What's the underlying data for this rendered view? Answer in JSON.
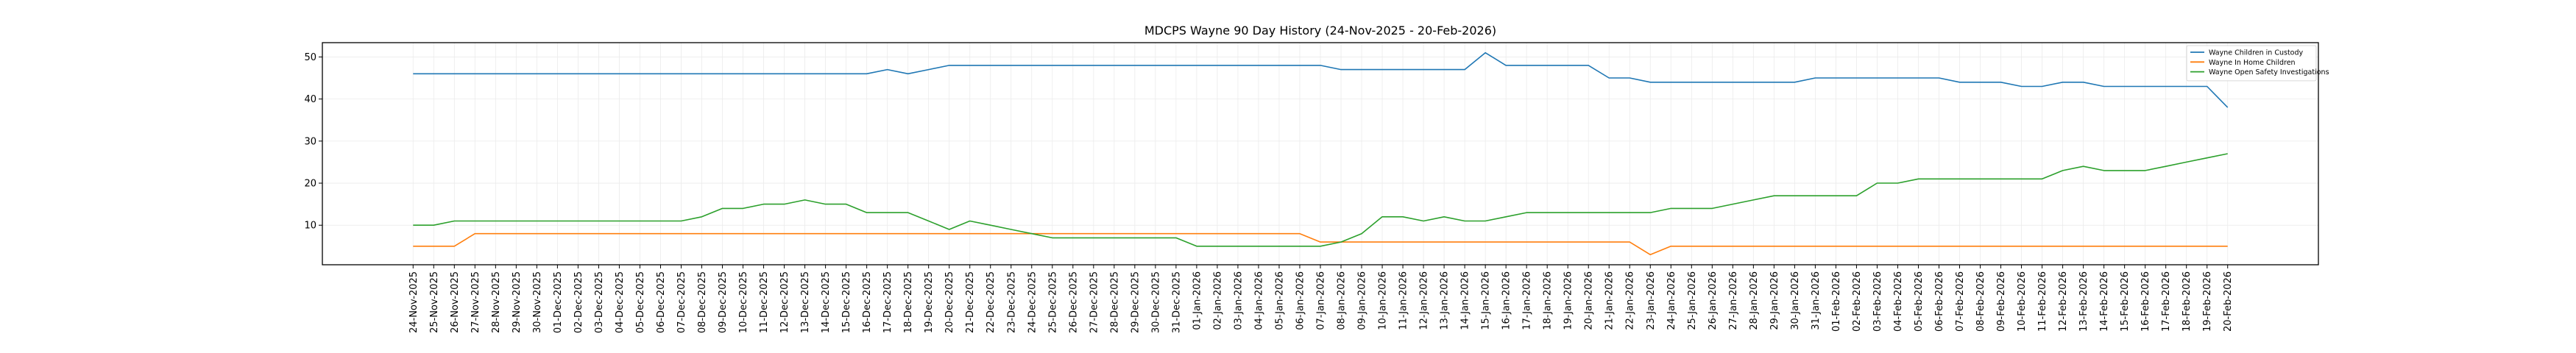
{
  "chart_data": {
    "type": "line",
    "title": "MDCPS Wayne 90 Day History (24-Nov-2025 - 20-Feb-2026)",
    "xlabel": "",
    "ylabel": "",
    "ylim": [
      0.6,
      53.4
    ],
    "yticks": [
      10,
      20,
      30,
      40,
      50
    ],
    "grid": true,
    "legend_position": "top-right",
    "x": [
      "24-Nov-2025",
      "25-Nov-2025",
      "26-Nov-2025",
      "27-Nov-2025",
      "28-Nov-2025",
      "29-Nov-2025",
      "30-Nov-2025",
      "01-Dec-2025",
      "02-Dec-2025",
      "03-Dec-2025",
      "04-Dec-2025",
      "05-Dec-2025",
      "06-Dec-2025",
      "07-Dec-2025",
      "08-Dec-2025",
      "09-Dec-2025",
      "10-Dec-2025",
      "11-Dec-2025",
      "12-Dec-2025",
      "13-Dec-2025",
      "14-Dec-2025",
      "15-Dec-2025",
      "16-Dec-2025",
      "17-Dec-2025",
      "18-Dec-2025",
      "19-Dec-2025",
      "20-Dec-2025",
      "21-Dec-2025",
      "22-Dec-2025",
      "23-Dec-2025",
      "24-Dec-2025",
      "25-Dec-2025",
      "26-Dec-2025",
      "27-Dec-2025",
      "28-Dec-2025",
      "29-Dec-2025",
      "30-Dec-2025",
      "31-Dec-2025",
      "01-Jan-2026",
      "02-Jan-2026",
      "03-Jan-2026",
      "04-Jan-2026",
      "05-Jan-2026",
      "06-Jan-2026",
      "07-Jan-2026",
      "08-Jan-2026",
      "09-Jan-2026",
      "10-Jan-2026",
      "11-Jan-2026",
      "12-Jan-2026",
      "13-Jan-2026",
      "14-Jan-2026",
      "15-Jan-2026",
      "16-Jan-2026",
      "17-Jan-2026",
      "18-Jan-2026",
      "19-Jan-2026",
      "20-Jan-2026",
      "21-Jan-2026",
      "22-Jan-2026",
      "23-Jan-2026",
      "24-Jan-2026",
      "25-Jan-2026",
      "26-Jan-2026",
      "27-Jan-2026",
      "28-Jan-2026",
      "29-Jan-2026",
      "30-Jan-2026",
      "31-Jan-2026",
      "01-Feb-2026",
      "02-Feb-2026",
      "03-Feb-2026",
      "04-Feb-2026",
      "05-Feb-2026",
      "06-Feb-2026",
      "07-Feb-2026",
      "08-Feb-2026",
      "09-Feb-2026",
      "10-Feb-2026",
      "11-Feb-2026",
      "12-Feb-2026",
      "13-Feb-2026",
      "14-Feb-2026",
      "15-Feb-2026",
      "16-Feb-2026",
      "17-Feb-2026",
      "18-Feb-2026",
      "19-Feb-2026",
      "20-Feb-2026"
    ],
    "series": [
      {
        "name": "Wayne Children in Custody",
        "color": "#1f77b4",
        "values": [
          46,
          46,
          46,
          46,
          46,
          46,
          46,
          46,
          46,
          46,
          46,
          46,
          46,
          46,
          46,
          46,
          46,
          46,
          46,
          46,
          46,
          46,
          46,
          47,
          46,
          47,
          48,
          48,
          48,
          48,
          48,
          48,
          48,
          48,
          48,
          48,
          48,
          48,
          48,
          48,
          48,
          48,
          48,
          48,
          48,
          47,
          47,
          47,
          47,
          47,
          47,
          47,
          51,
          48,
          48,
          48,
          48,
          48,
          45,
          45,
          44,
          44,
          44,
          44,
          44,
          44,
          44,
          44,
          45,
          45,
          45,
          45,
          45,
          45,
          45,
          44,
          44,
          44,
          43,
          43,
          44,
          44,
          43,
          43,
          43,
          43,
          43,
          43,
          38
        ]
      },
      {
        "name": "Wayne In Home Children",
        "color": "#ff7f0e",
        "values": [
          5,
          5,
          5,
          8,
          8,
          8,
          8,
          8,
          8,
          8,
          8,
          8,
          8,
          8,
          8,
          8,
          8,
          8,
          8,
          8,
          8,
          8,
          8,
          8,
          8,
          8,
          8,
          8,
          8,
          8,
          8,
          8,
          8,
          8,
          8,
          8,
          8,
          8,
          8,
          8,
          8,
          8,
          8,
          8,
          6,
          6,
          6,
          6,
          6,
          6,
          6,
          6,
          6,
          6,
          6,
          6,
          6,
          6,
          6,
          6,
          3,
          5,
          5,
          5,
          5,
          5,
          5,
          5,
          5,
          5,
          5,
          5,
          5,
          5,
          5,
          5,
          5,
          5,
          5,
          5,
          5,
          5,
          5,
          5,
          5,
          5,
          5,
          5,
          5
        ]
      },
      {
        "name": "Wayne Open Safety Investigations",
        "color": "#2ca02c",
        "values": [
          10,
          10,
          11,
          11,
          11,
          11,
          11,
          11,
          11,
          11,
          11,
          11,
          11,
          11,
          12,
          14,
          14,
          15,
          15,
          16,
          15,
          15,
          13,
          13,
          13,
          11,
          9,
          11,
          10,
          9,
          8,
          7,
          7,
          7,
          7,
          7,
          7,
          7,
          5,
          5,
          5,
          5,
          5,
          5,
          5,
          6,
          8,
          12,
          12,
          11,
          12,
          11,
          11,
          12,
          13,
          13,
          13,
          13,
          13,
          13,
          13,
          14,
          14,
          14,
          15,
          16,
          17,
          17,
          17,
          17,
          17,
          20,
          20,
          21,
          21,
          21,
          21,
          21,
          21,
          21,
          23,
          24,
          23,
          23,
          23,
          24,
          25,
          26,
          27
        ]
      }
    ]
  }
}
